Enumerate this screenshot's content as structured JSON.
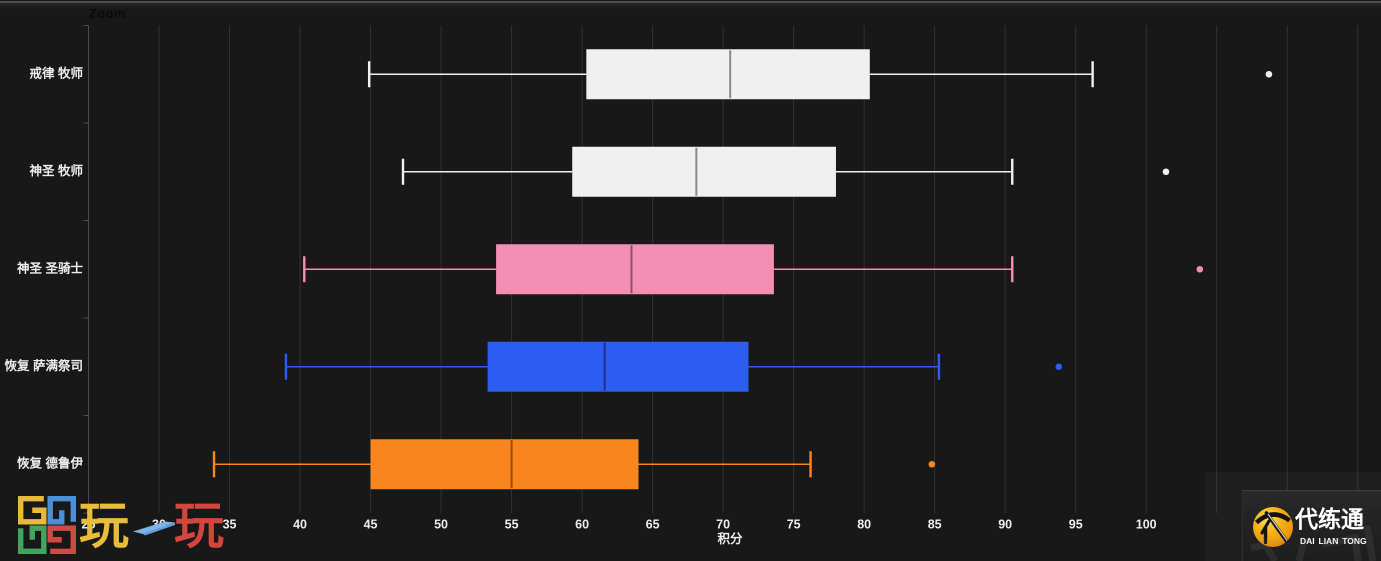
{
  "chart_data": {
    "type": "boxplot",
    "orientation": "horizontal",
    "zoom_label": "Zoom",
    "xlabel": "积分",
    "grid": true,
    "legend_position": "none",
    "xlim": [
      25,
      116
    ],
    "x_tick_labels": [
      25,
      30,
      35,
      40,
      45,
      50,
      55,
      60,
      65,
      70,
      75,
      80,
      85,
      90,
      95,
      100
    ],
    "x_gridlines": [
      25,
      30,
      35,
      40,
      45,
      50,
      55,
      60,
      65,
      70,
      75,
      80,
      85,
      90,
      95,
      100,
      105,
      110,
      115
    ],
    "categories": [
      "戒律 牧师",
      "神圣 牧师",
      "神圣 圣骑士",
      "恢复 萨满祭司",
      "恢复 德鲁伊"
    ],
    "series": [
      {
        "name": "戒律 牧师",
        "color": "#f0f0f0",
        "low": 44.9,
        "q1": 60.3,
        "median": 70.5,
        "q3": 80.4,
        "high": 96.2,
        "outliers": [
          108.7
        ]
      },
      {
        "name": "神圣 牧师",
        "color": "#f0f0f0",
        "low": 47.3,
        "q1": 59.3,
        "median": 68.1,
        "q3": 78.0,
        "high": 90.5,
        "outliers": [
          101.4
        ]
      },
      {
        "name": "神圣 圣骑士",
        "color": "#f48fb4",
        "low": 40.3,
        "q1": 53.9,
        "median": 63.5,
        "q3": 73.6,
        "high": 90.5,
        "outliers": [
          103.8
        ]
      },
      {
        "name": "恢复 萨满祭司",
        "color": "#2c5cf0",
        "low": 39.0,
        "q1": 53.3,
        "median": 61.6,
        "q3": 71.8,
        "high": 85.3,
        "outliers": [
          93.8
        ]
      },
      {
        "name": "恢复 德鲁伊",
        "color": "#f8851d",
        "low": 33.9,
        "q1": 45.0,
        "median": 55.0,
        "q3": 64.0,
        "high": 76.2,
        "outliers": [
          84.8
        ]
      }
    ],
    "colors": {
      "background": "#181818",
      "grid_line": "#323232",
      "axis_line": "#4c4c4c",
      "tick_label": "#ededed",
      "median_overlay": "rgba(0,0,0,0.42)"
    }
  },
  "corner_logo": {
    "char1": "玩",
    "char2": "一",
    "char3": "玩",
    "char1_color": "#e9bd3a",
    "char2_color": "#7db4e8",
    "char3_color": "#d4453e",
    "grid_colors": [
      "#e9b93c",
      "#4a90d8",
      "#43a45f",
      "#cf4a44"
    ]
  },
  "watermark": {
    "brand_cn": "代练通",
    "brand_en": "DAI LIAN TONG",
    "badge_gold": "#f5a50a"
  }
}
